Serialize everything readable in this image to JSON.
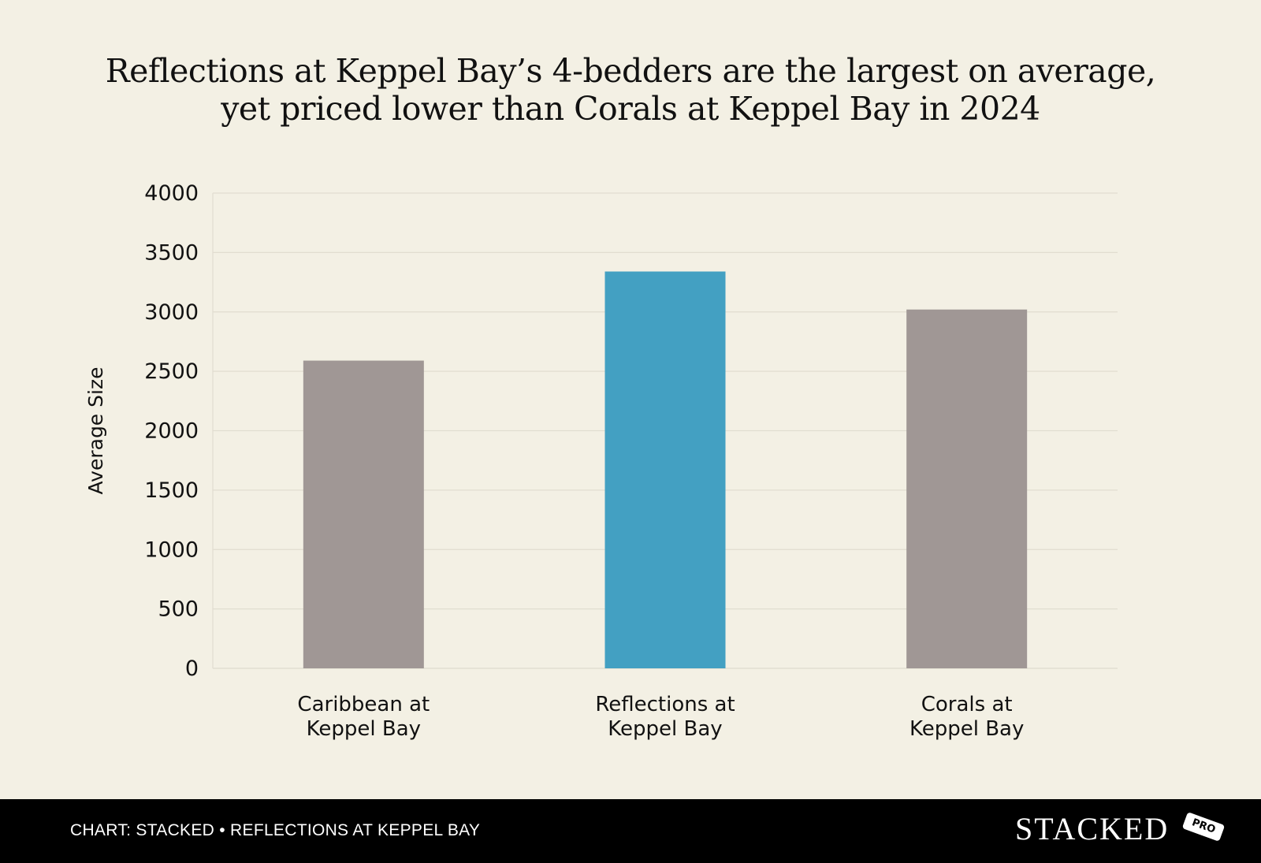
{
  "chart_data": {
    "type": "bar",
    "title_lines": [
      "Reflections at Keppel Bay’s 4-bedders are the largest on average,",
      "yet priced lower than Corals at Keppel Bay in 2024"
    ],
    "ylabel": "Average Size",
    "xlabel": "",
    "ylim": [
      0,
      4000
    ],
    "yticks": [
      0,
      500,
      1000,
      1500,
      2000,
      2500,
      3000,
      3500,
      4000
    ],
    "grid": true,
    "categories": [
      [
        "Caribbean at",
        "Keppel Bay"
      ],
      [
        "Reflections at",
        "Keppel Bay"
      ],
      [
        "Corals at",
        "Keppel Bay"
      ]
    ],
    "values": [
      2590,
      3340,
      3020
    ],
    "colors": [
      "#a09795",
      "#43a0c2",
      "#a09795"
    ]
  },
  "footer": {
    "credit": "CHART: STACKED • REFLECTIONS AT KEPPEL BAY",
    "brand": "STACKED",
    "badge": "PRO"
  }
}
